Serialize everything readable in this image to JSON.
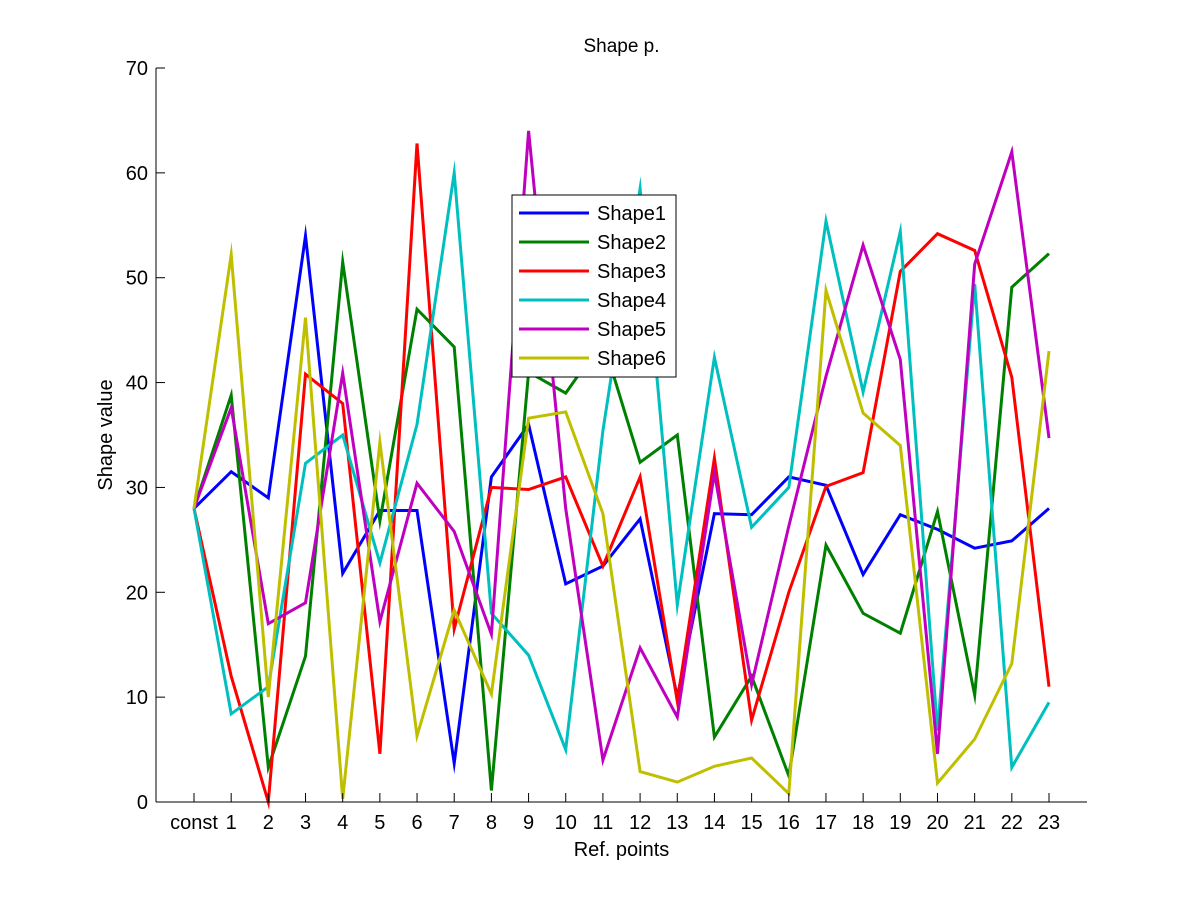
{
  "chart_data": {
    "type": "line",
    "title": "Shape p.",
    "xlabel": "Ref. points",
    "ylabel": "Shape value",
    "ylim": [
      0,
      70
    ],
    "yticks": [
      "0",
      "10",
      "20",
      "30",
      "40",
      "50",
      "60",
      "70"
    ],
    "categories": [
      "const",
      "1",
      "2",
      "3",
      "4",
      "5",
      "6",
      "7",
      "8",
      "9",
      "10",
      "11",
      "12",
      "13",
      "14",
      "15",
      "16",
      "17",
      "18",
      "19",
      "20",
      "21",
      "22",
      "23"
    ],
    "grid": false,
    "legend_position": "top-center",
    "series": [
      {
        "name": "Shape1",
        "color": "#0000ff",
        "values": [
          28,
          31.5,
          29,
          54,
          21.8,
          27.8,
          27.8,
          3.7,
          31,
          36,
          20.8,
          22.5,
          27,
          10,
          27.5,
          27.4,
          31,
          30.2,
          21.7,
          27.4,
          26,
          24.2,
          24.9,
          28
        ]
      },
      {
        "name": "Shape2",
        "color": "#008000",
        "values": [
          28,
          38.8,
          3.3,
          13.9,
          51.5,
          26.8,
          47,
          43.4,
          1.1,
          41,
          39,
          44,
          32.4,
          35,
          6.2,
          12,
          2.5,
          24.5,
          18,
          16.1,
          27.7,
          10.2,
          49.1,
          52.3
        ]
      },
      {
        "name": "Shape3",
        "color": "#ff0000",
        "values": [
          28,
          12,
          0,
          40.8,
          38,
          4.6,
          62.8,
          16.5,
          30,
          29.8,
          31,
          22.5,
          31,
          9.6,
          32.8,
          7.8,
          20,
          30.1,
          31.4,
          50.6,
          54.2,
          52.6,
          40.5,
          11
        ]
      },
      {
        "name": "Shape4",
        "color": "#00bfbf",
        "values": [
          28,
          8.4,
          11,
          32.3,
          35,
          22.8,
          36,
          60,
          18,
          14,
          5,
          35.4,
          58.5,
          18.8,
          42.4,
          26.2,
          30,
          55.4,
          39.1,
          54.4,
          6.8,
          49.4,
          3.3,
          9.5
        ]
      },
      {
        "name": "Shape5",
        "color": "#bf00bf",
        "values": [
          28,
          37.6,
          17,
          19,
          40.9,
          17.2,
          30.4,
          25.8,
          16,
          64,
          28,
          4,
          14.7,
          8.1,
          31.4,
          11.2,
          26.3,
          40.6,
          53.1,
          42.2,
          4.6,
          51.3,
          62,
          34.7
        ]
      },
      {
        "name": "Shape6",
        "color": "#bfbf00",
        "values": [
          28,
          52.2,
          10,
          46.2,
          0.3,
          34.3,
          6.3,
          18.3,
          10.3,
          36.6,
          37.2,
          27.5,
          2.9,
          1.9,
          3.4,
          4.2,
          0.8,
          48.8,
          37.1,
          34,
          1.8,
          6,
          13.2,
          43
        ]
      }
    ]
  }
}
